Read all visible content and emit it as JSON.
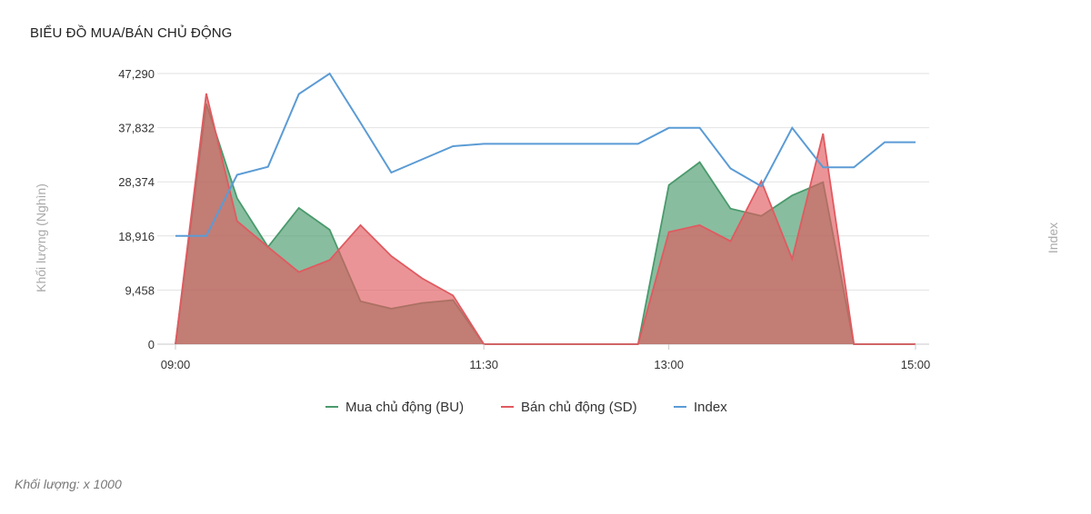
{
  "title": "BIỂU ĐỒ MUA/BÁN CHỦ ĐỘNG",
  "footnote": "Khối lượng: x 1000",
  "chart_data": {
    "type": "area",
    "x": [
      "09:00",
      "09:15",
      "09:30",
      "09:45",
      "10:00",
      "10:15",
      "10:30",
      "10:45",
      "11:00",
      "11:15",
      "11:30",
      "11:45",
      "12:00",
      "12:15",
      "12:30",
      "12:45",
      "13:00",
      "13:15",
      "13:30",
      "13:45",
      "14:00",
      "14:15",
      "14:30",
      "14:45",
      "15:00"
    ],
    "x_ticks": [
      "09:00",
      "11:30",
      "13:00",
      "15:00"
    ],
    "y_ticks": [
      "0",
      "9,458",
      "18,916",
      "28,374",
      "37,832",
      "47,290"
    ],
    "ylim": [
      0,
      47290
    ],
    "ylabel_left": "Khối lượng (Nghìn)",
    "ylabel_right": "Index",
    "legend_position": "bottom",
    "grid": true,
    "series": [
      {
        "name": "Mua chủ động (BU)",
        "color": "#4a9a6c",
        "values": [
          0,
          42000,
          25500,
          17000,
          23800,
          20000,
          7500,
          6200,
          7200,
          7700,
          0,
          0,
          0,
          0,
          0,
          0,
          27800,
          31800,
          23700,
          22400,
          26000,
          28300,
          0,
          0,
          0
        ]
      },
      {
        "name": "Bán chủ động (SD)",
        "color": "#e05a60",
        "values": [
          0,
          43800,
          21500,
          17000,
          12600,
          14700,
          20800,
          15400,
          11500,
          8500,
          0,
          0,
          0,
          0,
          0,
          0,
          19600,
          20800,
          18000,
          28500,
          14900,
          36800,
          0,
          0,
          0
        ]
      },
      {
        "name": "Index",
        "color": "#5b9bd5",
        "axis": "right",
        "values": [
          18916,
          18916,
          29600,
          31000,
          43700,
          47290,
          38700,
          30000,
          32300,
          34600,
          35000,
          35000,
          35000,
          35000,
          35000,
          35000,
          37800,
          37800,
          30700,
          27600,
          37800,
          30900,
          30900,
          35300,
          35300
        ]
      }
    ]
  }
}
